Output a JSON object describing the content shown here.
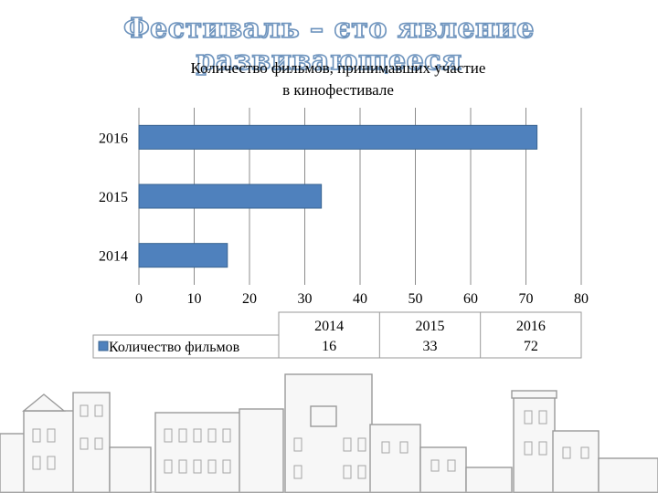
{
  "slide_title": "Фестиваль – єто явление развивающееся",
  "chart_data": {
    "type": "bar",
    "orientation": "horizontal",
    "title_lines": [
      "Количество фильмов, принимавших участие",
      "в кинофестивале"
    ],
    "categories": [
      "2014",
      "2015",
      "2016"
    ],
    "series": [
      {
        "name": "Количество фильмов",
        "values": [
          16,
          33,
          72
        ],
        "color": "#4f81bd"
      }
    ],
    "xlim": [
      0,
      80
    ],
    "x_ticks": [
      "0",
      "10",
      "20",
      "30",
      "40",
      "50",
      "60",
      "70",
      "80"
    ],
    "grid": true,
    "legend_position": "bottom",
    "data_table": {
      "headers": [
        "2014",
        "2015",
        "2016"
      ],
      "values": [
        "16",
        "33",
        "72"
      ]
    }
  }
}
